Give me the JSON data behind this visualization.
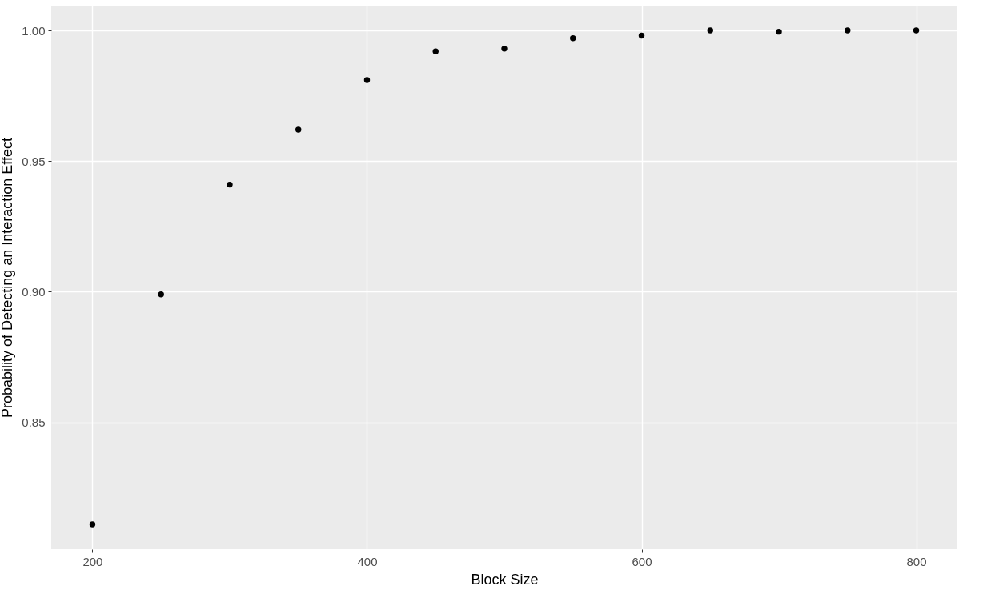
{
  "chart_data": {
    "type": "scatter",
    "xlabel": "Block Size",
    "ylabel": "Probability of Detecting an Interaction Effect",
    "x": [
      200,
      250,
      300,
      350,
      400,
      450,
      500,
      550,
      600,
      650,
      700,
      750,
      800
    ],
    "series": [
      {
        "color": "#000000",
        "values": [
          0.811,
          0.899,
          0.941,
          0.962,
          0.981,
          0.992,
          0.993,
          0.997,
          0.998,
          1.0,
          0.9995,
          1.0,
          1.0
        ]
      }
    ],
    "xlim": [
      170,
      830
    ],
    "ylim": [
      0.8015,
      1.0095
    ],
    "xticks": [
      200,
      400,
      600,
      800
    ],
    "yticks": [
      0.85,
      {
        "value": 0.9,
        "label": "0.90"
      },
      0.95,
      {
        "value": 1.0,
        "label": "1.00"
      }
    ],
    "grid": true,
    "marker": "circle",
    "legend": false
  }
}
